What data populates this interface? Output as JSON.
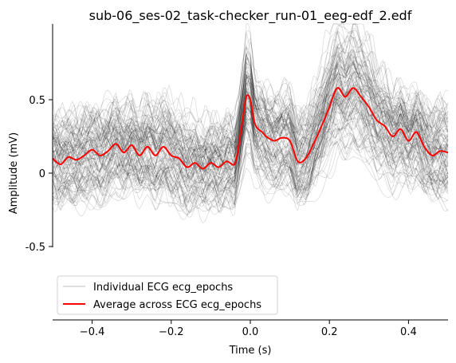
{
  "chart_data": {
    "type": "line",
    "title": "sub-06_ses-02_task-checker_run-01_eeg-edf_2.edf",
    "xlabel": "Time (s)",
    "ylabel": "Amplitude (mV)",
    "xlim": [
      -0.5,
      0.5
    ],
    "ylim": [
      -0.5,
      0.5
    ],
    "x_ticks": [
      -0.4,
      -0.2,
      0.0,
      0.2,
      0.4
    ],
    "x_tick_labels": [
      "−0.4",
      "−0.2",
      "0.0",
      "0.2",
      "0.4"
    ],
    "y_ticks": [
      0.5,
      0,
      -0.5
    ],
    "y_tick_labels": [
      "0.5",
      "0",
      "-0.5"
    ],
    "legend": {
      "position": "lower-left",
      "entries": [
        {
          "label": "Individual ECG ecg_epochs",
          "color": "#bdbdbd"
        },
        {
          "label": "Average across ECG ecg_epochs",
          "color": "#ff0000"
        }
      ]
    },
    "series": [
      {
        "name": "Average across ECG ecg_epochs",
        "color": "#ff0000",
        "x": [
          -0.5,
          -0.48,
          -0.46,
          -0.44,
          -0.42,
          -0.4,
          -0.38,
          -0.36,
          -0.34,
          -0.32,
          -0.3,
          -0.28,
          -0.26,
          -0.24,
          -0.22,
          -0.2,
          -0.18,
          -0.16,
          -0.14,
          -0.12,
          -0.1,
          -0.08,
          -0.06,
          -0.04,
          -0.03,
          -0.02,
          -0.01,
          0.0,
          0.01,
          0.02,
          0.03,
          0.04,
          0.06,
          0.08,
          0.1,
          0.12,
          0.14,
          0.16,
          0.18,
          0.2,
          0.22,
          0.24,
          0.26,
          0.28,
          0.3,
          0.32,
          0.34,
          0.36,
          0.38,
          0.4,
          0.42,
          0.44,
          0.46,
          0.48,
          0.5
        ],
        "y": [
          0.1,
          0.06,
          0.11,
          0.09,
          0.12,
          0.16,
          0.12,
          0.15,
          0.2,
          0.14,
          0.19,
          0.12,
          0.18,
          0.12,
          0.18,
          0.12,
          0.1,
          0.04,
          0.07,
          0.03,
          0.07,
          0.04,
          0.08,
          0.06,
          0.18,
          0.35,
          0.52,
          0.5,
          0.35,
          0.3,
          0.28,
          0.25,
          0.22,
          0.24,
          0.22,
          0.08,
          0.1,
          0.2,
          0.32,
          0.45,
          0.58,
          0.52,
          0.58,
          0.52,
          0.45,
          0.36,
          0.32,
          0.25,
          0.3,
          0.22,
          0.28,
          0.18,
          0.12,
          0.15,
          0.14
        ]
      }
    ]
  }
}
